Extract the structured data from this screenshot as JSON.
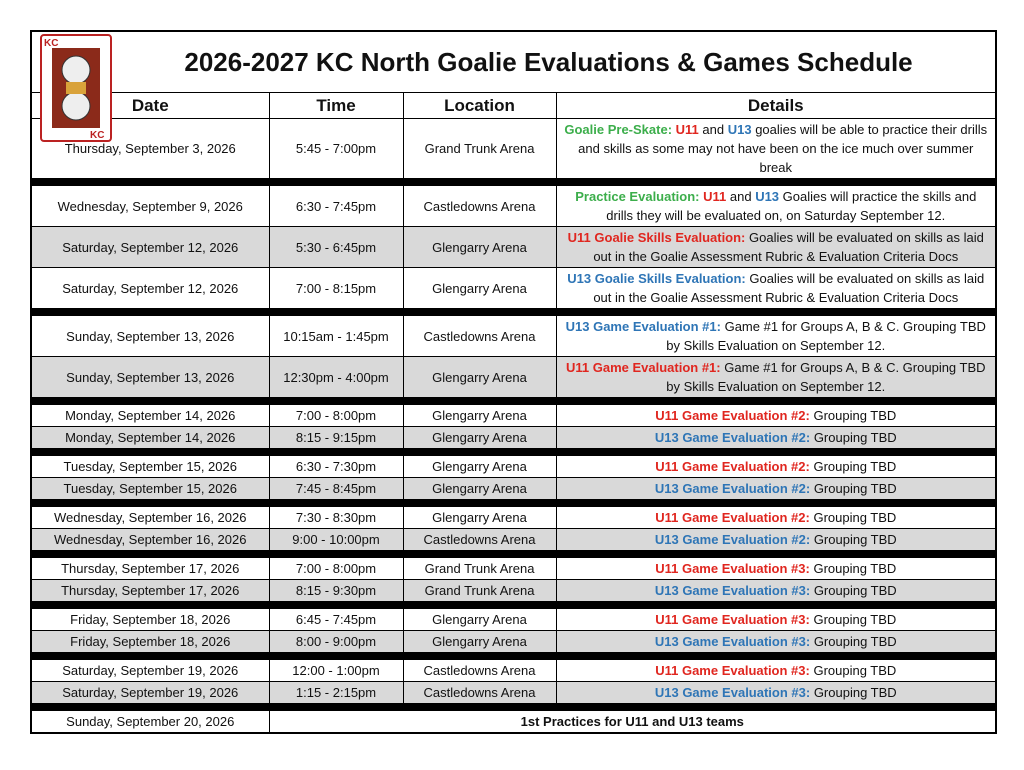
{
  "title": "2026-2027 KC North Goalie Evaluations & Games Schedule",
  "headers": [
    "Date",
    "Time",
    "Location",
    "Details"
  ],
  "groups": [
    [
      {
        "date": "Thursday, September 3, 2026",
        "time": "5:45 - 7:00pm",
        "location": "Grand Trunk Arena",
        "details": [
          {
            "text": "Goalie Pre-Skate: ",
            "color": "#3cae4b"
          },
          {
            "text": "U11",
            "color": "#e0261f"
          },
          {
            "text": " and "
          },
          {
            "text": "U13",
            "color": "#2e75b6"
          },
          {
            "text": " goalies will be able to practice their drills and skills as some may not have been on the ice much over summer break"
          }
        ]
      }
    ],
    [
      {
        "date": "Wednesday, September 9, 2026",
        "time": "6:30 - 7:45pm",
        "location": "Castledowns Arena",
        "details": [
          {
            "text": "Practice Evaluation: ",
            "color": "#3cae4b"
          },
          {
            "text": "U11",
            "color": "#e0261f"
          },
          {
            "text": " and "
          },
          {
            "text": "U13",
            "color": "#2e75b6"
          },
          {
            "text": " Goalies will practice the skills and drills they will be evaluated on, on Saturday September 12."
          }
        ]
      },
      {
        "date": "Saturday, September 12, 2026",
        "time": "5:30 - 6:45pm",
        "location": "Glengarry Arena",
        "shaded": true,
        "details": [
          {
            "text": "U11 Goalie Skills Evaluation:",
            "color": "#e0261f"
          },
          {
            "text": " Goalies will be evaluated on skills as laid out in the Goalie Assessment Rubric & Evaluation Criteria Docs"
          }
        ]
      },
      {
        "date": "Saturday, September 12, 2026",
        "time": "7:00 - 8:15pm",
        "location": "Glengarry Arena",
        "details": [
          {
            "text": "U13 Goalie Skills Evaluation:",
            "color": "#2e75b6"
          },
          {
            "text": " Goalies will be evaluated on skills as laid out in the Goalie Assessment Rubric & Evaluation Criteria Docs"
          }
        ]
      }
    ],
    [
      {
        "date": "Sunday, September 13, 2026",
        "time": "10:15am - 1:45pm",
        "location": "Castledowns Arena",
        "details": [
          {
            "text": "U13 Game Evaluation #1:",
            "color": "#2e75b6"
          },
          {
            "text": " Game #1 for Groups A, B & C. Grouping TBD by Skills Evaluation on September 12."
          }
        ]
      },
      {
        "date": "Sunday, September 13, 2026",
        "time": "12:30pm - 4:00pm",
        "location": "Glengarry Arena",
        "shaded": true,
        "details": [
          {
            "text": "U11 Game Evaluation #1:",
            "color": "#e0261f"
          },
          {
            "text": " Game #1 for Groups A, B & C. Grouping TBD by Skills Evaluation on September 12."
          }
        ]
      }
    ],
    [
      {
        "date": "Monday, September 14, 2026",
        "time": "7:00 - 8:00pm",
        "location": "Glengarry Arena",
        "details": [
          {
            "text": "U11 Game Evaluation #2:",
            "color": "#e0261f"
          },
          {
            "text": " Grouping TBD"
          }
        ]
      },
      {
        "date": "Monday, September 14, 2026",
        "time": "8:15 - 9:15pm",
        "location": "Glengarry Arena",
        "shaded": true,
        "details": [
          {
            "text": "U13 Game Evaluation #2:",
            "color": "#2e75b6"
          },
          {
            "text": " Grouping TBD"
          }
        ]
      }
    ],
    [
      {
        "date": "Tuesday, September 15, 2026",
        "time": "6:30 - 7:30pm",
        "location": "Glengarry Arena",
        "details": [
          {
            "text": "U11 Game Evaluation #2:",
            "color": "#e0261f"
          },
          {
            "text": " Grouping TBD"
          }
        ]
      },
      {
        "date": "Tuesday, September 15, 2026",
        "time": "7:45 - 8:45pm",
        "location": "Glengarry Arena",
        "shaded": true,
        "details": [
          {
            "text": "U13 Game Evaluation #2:",
            "color": "#2e75b6"
          },
          {
            "text": " Grouping TBD"
          }
        ]
      }
    ],
    [
      {
        "date": "Wednesday, September 16, 2026",
        "time": "7:30 - 8:30pm",
        "location": "Glengarry Arena",
        "details": [
          {
            "text": "U11 Game Evaluation #2:",
            "color": "#e0261f"
          },
          {
            "text": " Grouping TBD"
          }
        ]
      },
      {
        "date": "Wednesday, September 16, 2026",
        "time": "9:00 - 10:00pm",
        "location": "Castledowns Arena",
        "shaded": true,
        "details": [
          {
            "text": "U13 Game Evaluation #2:",
            "color": "#2e75b6"
          },
          {
            "text": " Grouping TBD"
          }
        ]
      }
    ],
    [
      {
        "date": "Thursday, September 17, 2026",
        "time": "7:00 - 8:00pm",
        "location": "Grand Trunk Arena",
        "details": [
          {
            "text": "U11 Game Evaluation #3:",
            "color": "#e0261f"
          },
          {
            "text": " Grouping TBD"
          }
        ]
      },
      {
        "date": "Thursday, September 17, 2026",
        "time": "8:15 - 9:30pm",
        "location": "Grand Trunk Arena",
        "shaded": true,
        "details": [
          {
            "text": "U13 Game Evaluation #3:",
            "color": "#2e75b6"
          },
          {
            "text": " Grouping TBD"
          }
        ]
      }
    ],
    [
      {
        "date": "Friday, September 18, 2026",
        "time": "6:45 - 7:45pm",
        "location": "Glengarry Arena",
        "details": [
          {
            "text": "U11 Game Evaluation #3:",
            "color": "#e0261f"
          },
          {
            "text": " Grouping TBD"
          }
        ]
      },
      {
        "date": "Friday, September 18, 2026",
        "time": "8:00 - 9:00pm",
        "location": "Glengarry Arena",
        "shaded": true,
        "details": [
          {
            "text": "U13 Game Evaluation #3:",
            "color": "#2e75b6"
          },
          {
            "text": " Grouping TBD"
          }
        ]
      }
    ],
    [
      {
        "date": "Saturday, September 19, 2026",
        "time": "12:00 - 1:00pm",
        "location": "Castledowns Arena",
        "details": [
          {
            "text": "U11 Game Evaluation #3:",
            "color": "#e0261f"
          },
          {
            "text": " Grouping TBD"
          }
        ]
      },
      {
        "date": "Saturday, September 19, 2026",
        "time": "1:15 - 2:15pm",
        "location": "Castledowns Arena",
        "shaded": true,
        "details": [
          {
            "text": "U13 Game Evaluation #3:",
            "color": "#2e75b6"
          },
          {
            "text": " Grouping TBD"
          }
        ]
      }
    ],
    [
      {
        "date": "Sunday, September 20, 2026",
        "note": "1st Practices for U11 and U13 teams"
      }
    ]
  ]
}
